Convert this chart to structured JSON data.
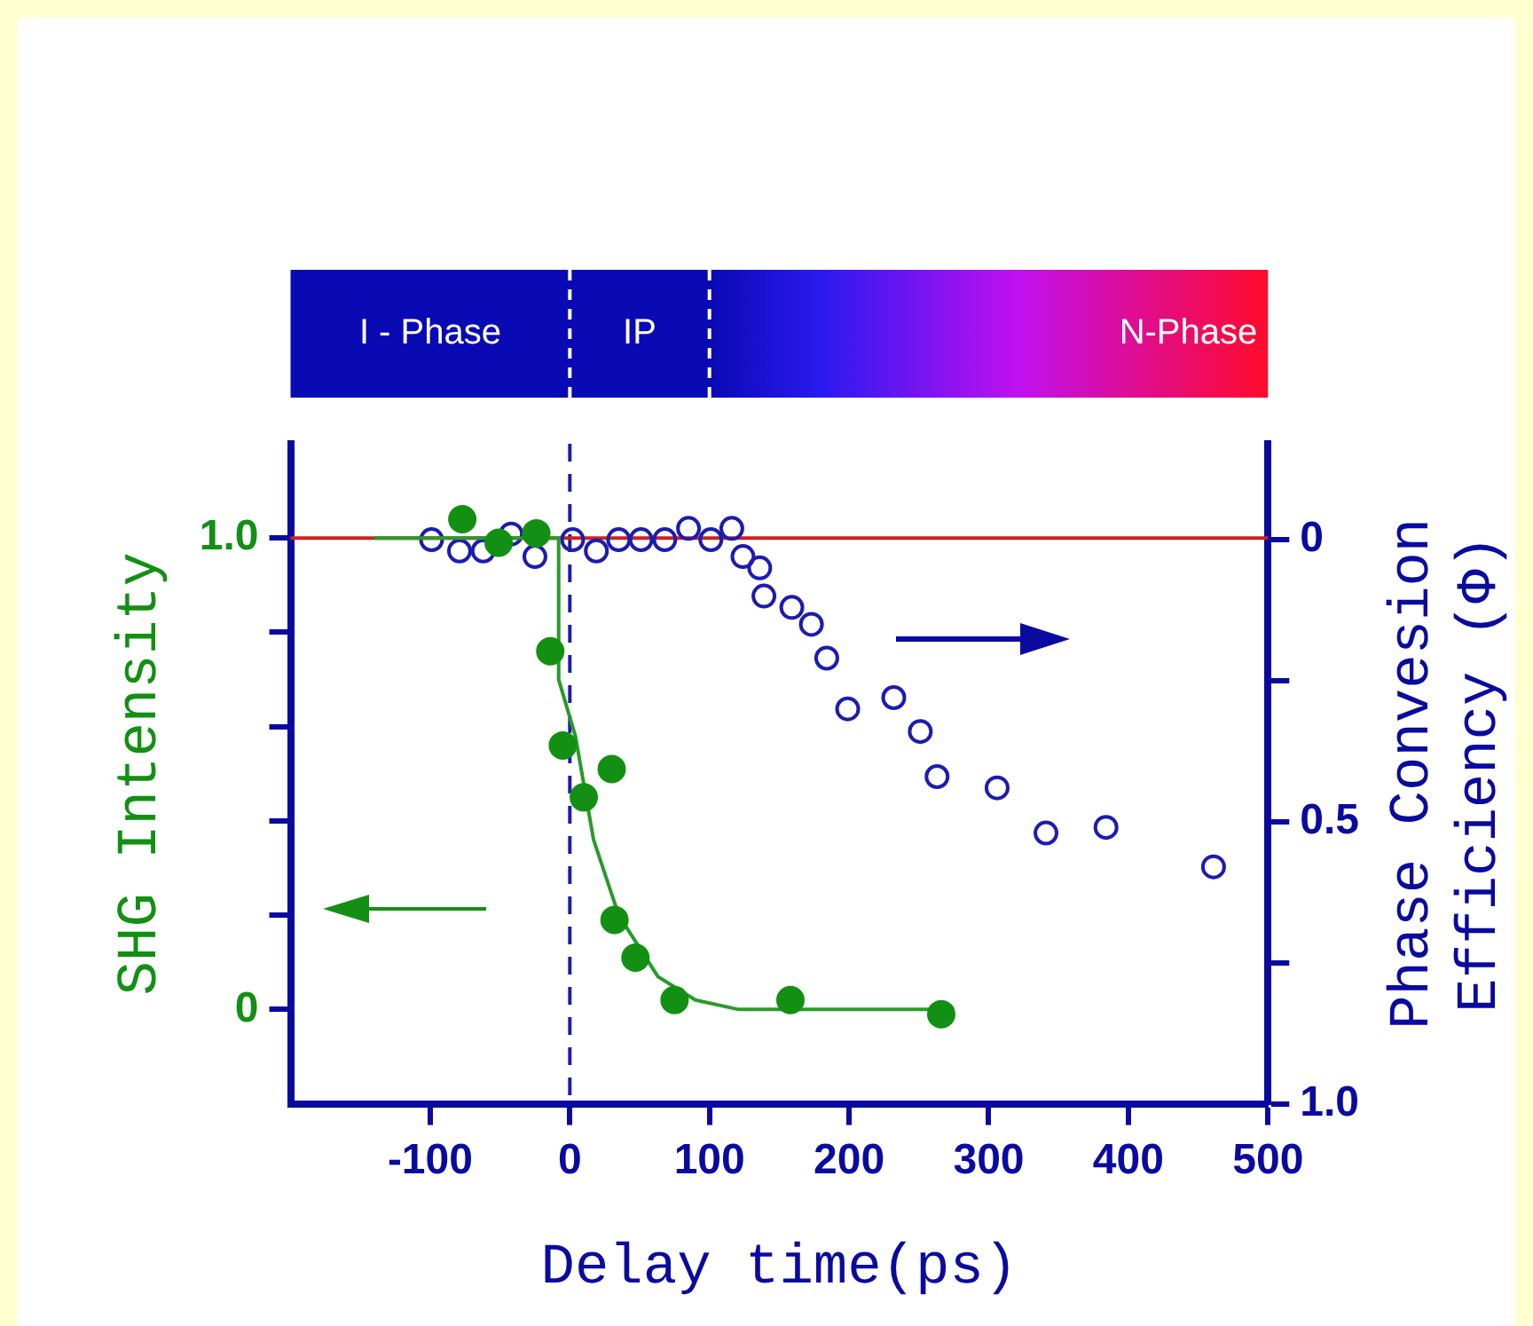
{
  "chart_data": [
    {
      "type": "bar",
      "orientation": "horizontal",
      "categories": [
        null
      ],
      "xlim": [
        -200,
        500
      ],
      "tick_labels": false,
      "legend": false,
      "series": [
        {
          "name": "I - Phase",
          "color": "#0a0ab4",
          "base": [
            -200
          ],
          "values": [
            200
          ]
        },
        {
          "name": "IP",
          "color": "#0a0ab4",
          "base": [
            0
          ],
          "values": [
            100
          ]
        },
        {
          "name": "N-Phase",
          "color": "#ff0a2a",
          "base": [
            100
          ],
          "values": [
            400
          ]
        }
      ]
    },
    {
      "type": "scatter",
      "xlabel": "Delay time(ps)",
      "ylabel": "SHG Intensity",
      "y2label": "Phase Convesion Efficiency (Φ)",
      "xlim": [
        -200,
        500
      ],
      "xticks": [
        -100,
        0,
        100,
        200,
        300,
        400,
        500
      ],
      "ylim": [
        -0.2,
        1.2
      ],
      "yticks": [
        {
          "value": 0,
          "label": "0"
        },
        {
          "value": 0.2,
          "label": null
        },
        {
          "value": 0.4,
          "label": null
        },
        {
          "value": 0.6,
          "label": null
        },
        {
          "value": 0.8,
          "label": null
        },
        {
          "value": 1.0,
          "label": "1.0"
        }
      ],
      "y2lim": [
        1.0,
        -0.17
      ],
      "y2ticks": [
        0,
        {
          "value": 0.25,
          "label": null
        },
        0.5,
        {
          "value": 0.75,
          "label": null
        },
        {
          "value": 1.0,
          "label": "1.0"
        }
      ],
      "grid": false,
      "legend": false,
      "marker": "circle",
      "series": [
        {
          "type": "scatter",
          "color": "#139013",
          "x": [
            -77,
            -51,
            -24,
            -14,
            -5,
            10,
            30,
            32,
            47,
            75,
            158,
            266
          ],
          "values": [
            1.04,
            0.99,
            1.01,
            0.76,
            0.56,
            0.45,
            0.51,
            0.19,
            0.11,
            0.02,
            0.02,
            -0.01
          ]
        },
        {
          "type": "line",
          "color": "#2a9a2a",
          "marker": "none",
          "x": [
            -140,
            -8,
            -8,
            4,
            17,
            35,
            63,
            90,
            121,
            266
          ],
          "values": [
            1.0,
            1.0,
            0.7,
            0.58,
            0.36,
            0.2,
            0.07,
            0.02,
            0.0,
            0.0
          ]
        },
        {
          "type": "scatter",
          "axis": "y2",
          "color": "#1c1cb0",
          "x": [
            -99,
            -79,
            -62,
            -42,
            -25,
            2,
            19,
            35,
            51,
            68,
            85,
            101,
            116,
            124,
            136,
            139,
            159,
            173,
            184,
            199,
            232,
            251,
            263,
            306,
            341,
            384,
            461
          ],
          "values": [
            0.0,
            0.02,
            0.02,
            -0.01,
            0.03,
            0.0,
            0.02,
            0.0,
            0.0,
            0.0,
            -0.02,
            0.0,
            -0.02,
            0.03,
            0.05,
            0.1,
            0.12,
            0.15,
            0.21,
            0.3,
            0.28,
            0.34,
            0.42,
            0.44,
            0.52,
            0.51,
            0.58
          ]
        }
      ],
      "ref_lines": [
        {
          "axis": "x",
          "value": 0,
          "color": "#1c1cb0",
          "line_style": "dashed"
        },
        {
          "axis": "y",
          "value": 1.0,
          "color": "#d02020",
          "line_style": "solid"
        }
      ]
    }
  ]
}
